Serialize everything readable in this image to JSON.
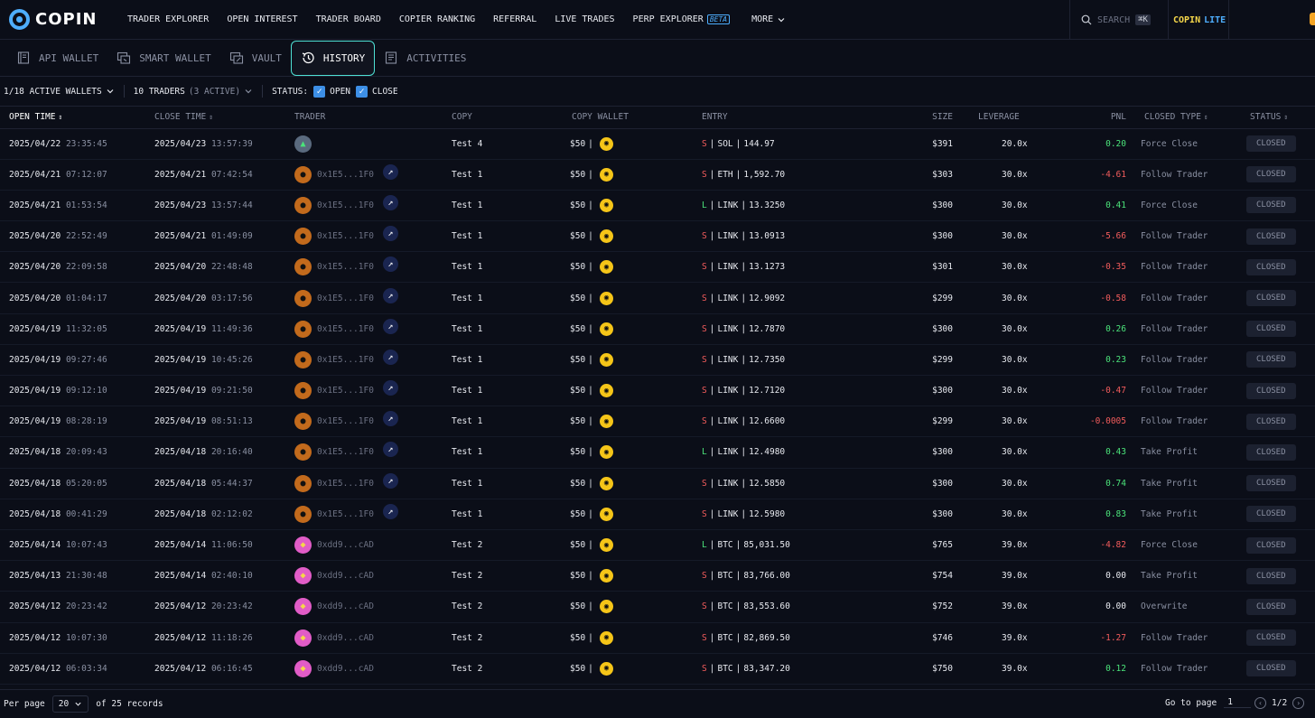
{
  "brand": {
    "name": "COPIN"
  },
  "nav": {
    "items": [
      "TRADER EXPLORER",
      "OPEN INTEREST",
      "TRADER BOARD",
      "COPIER RANKING",
      "REFERRAL",
      "LIVE TRADES",
      "PERP EXPLORER"
    ],
    "beta": "BETA",
    "more": "MORE"
  },
  "search": {
    "label": "SEARCH",
    "shortcut": "⌘K"
  },
  "lite": {
    "a": "COPIN",
    "b": "LITE"
  },
  "tabs": [
    {
      "label": "API WALLET",
      "icon": "book-icon"
    },
    {
      "label": "SMART WALLET",
      "icon": "wallet-icon"
    },
    {
      "label": "VAULT",
      "icon": "vault-icon"
    },
    {
      "label": "HISTORY",
      "icon": "history-icon",
      "active": true
    },
    {
      "label": "ACTIVITIES",
      "icon": "activities-icon"
    }
  ],
  "filters": {
    "wallets": "1/18 ACTIVE WALLETS",
    "traders": "10 TRADERS",
    "traders_active": "(3 ACTIVE)",
    "status_label": "STATUS:",
    "open": "OPEN",
    "close": "CLOSE"
  },
  "columns": [
    "OPEN TIME",
    "CLOSE TIME",
    "TRADER",
    "COPY",
    "COPY WALLET",
    "ENTRY",
    "SIZE",
    "LEVERAGE",
    "PNL",
    "CLOSED TYPE",
    "STATUS"
  ],
  "rows": [
    {
      "od": "2025/04/22",
      "ot": "23:35:45",
      "cd": "2025/04/23",
      "ct": "13:57:39",
      "av": "green",
      "addr": "",
      "proto": false,
      "copy": "Test 4",
      "wallet": "$50",
      "side": "S",
      "sym": "SOL",
      "price": "144.97",
      "size": "$391",
      "lev": "20.0x",
      "pnl": "0.20",
      "pnl_sign": "pos",
      "ctype": "Force Close",
      "status": "CLOSED"
    },
    {
      "od": "2025/04/21",
      "ot": "07:12:07",
      "cd": "2025/04/21",
      "ct": "07:42:54",
      "av": "orange",
      "addr": "0x1E5...1F0",
      "proto": true,
      "copy": "Test 1",
      "wallet": "$50",
      "side": "S",
      "sym": "ETH",
      "price": "1,592.70",
      "size": "$303",
      "lev": "30.0x",
      "pnl": "-4.61",
      "pnl_sign": "neg",
      "ctype": "Follow Trader",
      "status": "CLOSED"
    },
    {
      "od": "2025/04/21",
      "ot": "01:53:54",
      "cd": "2025/04/23",
      "ct": "13:57:44",
      "av": "orange",
      "addr": "0x1E5...1F0",
      "proto": true,
      "copy": "Test 1",
      "wallet": "$50",
      "side": "L",
      "sym": "LINK",
      "price": "13.3250",
      "size": "$300",
      "lev": "30.0x",
      "pnl": "0.41",
      "pnl_sign": "pos",
      "ctype": "Force Close",
      "status": "CLOSED"
    },
    {
      "od": "2025/04/20",
      "ot": "22:52:49",
      "cd": "2025/04/21",
      "ct": "01:49:09",
      "av": "orange",
      "addr": "0x1E5...1F0",
      "proto": true,
      "copy": "Test 1",
      "wallet": "$50",
      "side": "S",
      "sym": "LINK",
      "price": "13.0913",
      "size": "$300",
      "lev": "30.0x",
      "pnl": "-5.66",
      "pnl_sign": "neg",
      "ctype": "Follow Trader",
      "status": "CLOSED"
    },
    {
      "od": "2025/04/20",
      "ot": "22:09:58",
      "cd": "2025/04/20",
      "ct": "22:48:48",
      "av": "orange",
      "addr": "0x1E5...1F0",
      "proto": true,
      "copy": "Test 1",
      "wallet": "$50",
      "side": "S",
      "sym": "LINK",
      "price": "13.1273",
      "size": "$301",
      "lev": "30.0x",
      "pnl": "-0.35",
      "pnl_sign": "neg",
      "ctype": "Follow Trader",
      "status": "CLOSED"
    },
    {
      "od": "2025/04/20",
      "ot": "01:04:17",
      "cd": "2025/04/20",
      "ct": "03:17:56",
      "av": "orange",
      "addr": "0x1E5...1F0",
      "proto": true,
      "copy": "Test 1",
      "wallet": "$50",
      "side": "S",
      "sym": "LINK",
      "price": "12.9092",
      "size": "$299",
      "lev": "30.0x",
      "pnl": "-0.58",
      "pnl_sign": "neg",
      "ctype": "Follow Trader",
      "status": "CLOSED"
    },
    {
      "od": "2025/04/19",
      "ot": "11:32:05",
      "cd": "2025/04/19",
      "ct": "11:49:36",
      "av": "orange",
      "addr": "0x1E5...1F0",
      "proto": true,
      "copy": "Test 1",
      "wallet": "$50",
      "side": "S",
      "sym": "LINK",
      "price": "12.7870",
      "size": "$300",
      "lev": "30.0x",
      "pnl": "0.26",
      "pnl_sign": "pos",
      "ctype": "Follow Trader",
      "status": "CLOSED"
    },
    {
      "od": "2025/04/19",
      "ot": "09:27:46",
      "cd": "2025/04/19",
      "ct": "10:45:26",
      "av": "orange",
      "addr": "0x1E5...1F0",
      "proto": true,
      "copy": "Test 1",
      "wallet": "$50",
      "side": "S",
      "sym": "LINK",
      "price": "12.7350",
      "size": "$299",
      "lev": "30.0x",
      "pnl": "0.23",
      "pnl_sign": "pos",
      "ctype": "Follow Trader",
      "status": "CLOSED"
    },
    {
      "od": "2025/04/19",
      "ot": "09:12:10",
      "cd": "2025/04/19",
      "ct": "09:21:50",
      "av": "orange",
      "addr": "0x1E5...1F0",
      "proto": true,
      "copy": "Test 1",
      "wallet": "$50",
      "side": "S",
      "sym": "LINK",
      "price": "12.7120",
      "size": "$300",
      "lev": "30.0x",
      "pnl": "-0.47",
      "pnl_sign": "neg",
      "ctype": "Follow Trader",
      "status": "CLOSED"
    },
    {
      "od": "2025/04/19",
      "ot": "08:28:19",
      "cd": "2025/04/19",
      "ct": "08:51:13",
      "av": "orange",
      "addr": "0x1E5...1F0",
      "proto": true,
      "copy": "Test 1",
      "wallet": "$50",
      "side": "S",
      "sym": "LINK",
      "price": "12.6600",
      "size": "$299",
      "lev": "30.0x",
      "pnl": "-0.0005",
      "pnl_sign": "neg",
      "ctype": "Follow Trader",
      "status": "CLOSED"
    },
    {
      "od": "2025/04/18",
      "ot": "20:09:43",
      "cd": "2025/04/18",
      "ct": "20:16:40",
      "av": "orange",
      "addr": "0x1E5...1F0",
      "proto": true,
      "copy": "Test 1",
      "wallet": "$50",
      "side": "L",
      "sym": "LINK",
      "price": "12.4980",
      "size": "$300",
      "lev": "30.0x",
      "pnl": "0.43",
      "pnl_sign": "pos",
      "ctype": "Take Profit",
      "status": "CLOSED"
    },
    {
      "od": "2025/04/18",
      "ot": "05:20:05",
      "cd": "2025/04/18",
      "ct": "05:44:37",
      "av": "orange",
      "addr": "0x1E5...1F0",
      "proto": true,
      "copy": "Test 1",
      "wallet": "$50",
      "side": "S",
      "sym": "LINK",
      "price": "12.5850",
      "size": "$300",
      "lev": "30.0x",
      "pnl": "0.74",
      "pnl_sign": "pos",
      "ctype": "Take Profit",
      "status": "CLOSED"
    },
    {
      "od": "2025/04/18",
      "ot": "00:41:29",
      "cd": "2025/04/18",
      "ct": "02:12:02",
      "av": "orange",
      "addr": "0x1E5...1F0",
      "proto": true,
      "copy": "Test 1",
      "wallet": "$50",
      "side": "S",
      "sym": "LINK",
      "price": "12.5980",
      "size": "$300",
      "lev": "30.0x",
      "pnl": "0.83",
      "pnl_sign": "pos",
      "ctype": "Take Profit",
      "status": "CLOSED"
    },
    {
      "od": "2025/04/14",
      "ot": "10:07:43",
      "cd": "2025/04/14",
      "ct": "11:06:50",
      "av": "pink",
      "addr": "0xdd9...cAD",
      "proto": false,
      "copy": "Test 2",
      "wallet": "$50",
      "side": "L",
      "sym": "BTC",
      "price": "85,031.50",
      "size": "$765",
      "lev": "39.0x",
      "pnl": "-4.82",
      "pnl_sign": "neg",
      "ctype": "Force Close",
      "status": "CLOSED"
    },
    {
      "od": "2025/04/13",
      "ot": "21:30:48",
      "cd": "2025/04/14",
      "ct": "02:40:10",
      "av": "pink",
      "addr": "0xdd9...cAD",
      "proto": false,
      "copy": "Test 2",
      "wallet": "$50",
      "side": "S",
      "sym": "BTC",
      "price": "83,766.00",
      "size": "$754",
      "lev": "39.0x",
      "pnl": "0.00",
      "pnl_sign": "zero",
      "ctype": "Take Profit",
      "status": "CLOSED"
    },
    {
      "od": "2025/04/12",
      "ot": "20:23:42",
      "cd": "2025/04/12",
      "ct": "20:23:42",
      "av": "pink",
      "addr": "0xdd9...cAD",
      "proto": false,
      "copy": "Test 2",
      "wallet": "$50",
      "side": "S",
      "sym": "BTC",
      "price": "83,553.60",
      "size": "$752",
      "lev": "39.0x",
      "pnl": "0.00",
      "pnl_sign": "zero",
      "ctype": "Overwrite",
      "status": "CLOSED"
    },
    {
      "od": "2025/04/12",
      "ot": "10:07:30",
      "cd": "2025/04/12",
      "ct": "11:18:26",
      "av": "pink",
      "addr": "0xdd9...cAD",
      "proto": false,
      "copy": "Test 2",
      "wallet": "$50",
      "side": "S",
      "sym": "BTC",
      "price": "82,869.50",
      "size": "$746",
      "lev": "39.0x",
      "pnl": "-1.27",
      "pnl_sign": "neg",
      "ctype": "Follow Trader",
      "status": "CLOSED"
    },
    {
      "od": "2025/04/12",
      "ot": "06:03:34",
      "cd": "2025/04/12",
      "ct": "06:16:45",
      "av": "pink",
      "addr": "0xdd9...cAD",
      "proto": false,
      "copy": "Test 2",
      "wallet": "$50",
      "side": "S",
      "sym": "BTC",
      "price": "83,347.20",
      "size": "$750",
      "lev": "39.0x",
      "pnl": "0.12",
      "pnl_sign": "pos",
      "ctype": "Follow Trader",
      "status": "CLOSED"
    }
  ],
  "footer": {
    "per_page_label": "Per page",
    "per_page_value": "20",
    "records": "of 25 records",
    "goto_label": "Go to page",
    "goto_value": "1",
    "page_info": "1/2"
  },
  "colors": {
    "accent": "#4eaefd",
    "active_tab_border": "#4ee0d4",
    "positive": "#4be37a",
    "negative": "#f25c5c",
    "lite": "#f5d74a"
  }
}
